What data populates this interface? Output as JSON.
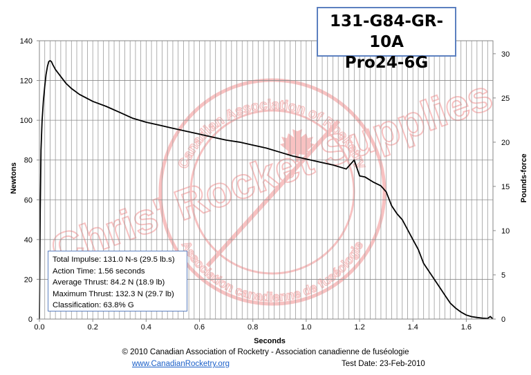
{
  "title_box": {
    "line1": "131-G84-GR-10A",
    "line2": "Pro24-6G"
  },
  "watermark": {
    "arc_top": "Canadian Association of Rocketry",
    "arc_bottom": "Association canadienne de fuséologie",
    "overlay": "Chris' Rocket Supplies",
    "color": "#f07878"
  },
  "stats": {
    "total_impulse": "Total Impulse: 131.0 N-s (29.5 lb.s)",
    "action_time": "Action Time: 1.56 seconds",
    "average_thrust": "Average Thrust: 84.2 N (18.9 lb)",
    "maximum_thrust": "Maximum Thrust: 132.3 N (29.7 lb)",
    "classification": "Classification: 63.8% G"
  },
  "footer": {
    "copyright": "© 2010 Canadian Association of Rocketry - Association canadienne de fuséologie",
    "link": "www.CanadianRocketry.org",
    "test_date": "Test  Date: 23-Feb-2010"
  },
  "chart_data": {
    "type": "line",
    "xlabel": "Seconds",
    "ylabel": "Newtons",
    "y2label": "Pounds-force",
    "xlim": [
      0,
      1.7
    ],
    "ylim": [
      0,
      140
    ],
    "y2lim": [
      0,
      31.47
    ],
    "x_ticks": [
      "0.0",
      "0.2",
      "0.4",
      "0.6",
      "0.8",
      "1.0",
      "1.2",
      "1.4",
      "1.6"
    ],
    "y_ticks": [
      "0",
      "20",
      "40",
      "60",
      "80",
      "100",
      "120",
      "140"
    ],
    "y2_ticks": [
      "0",
      "5",
      "10",
      "15",
      "20",
      "25",
      "30"
    ],
    "grid": true,
    "line_color": "#000000",
    "series": [
      {
        "x": [
          0,
          0.003,
          0.006,
          0.01,
          0.015,
          0.02,
          0.025,
          0.03,
          0.035,
          0.04,
          0.045,
          0.05,
          0.06,
          0.08,
          0.1,
          0.12,
          0.15,
          0.2,
          0.25,
          0.3,
          0.35,
          0.4,
          0.45,
          0.5,
          0.55,
          0.6,
          0.65,
          0.7,
          0.75,
          0.8,
          0.85,
          0.9,
          0.95,
          1.0,
          1.05,
          1.1,
          1.15,
          1.17,
          1.18,
          1.2,
          1.22,
          1.25,
          1.28,
          1.3,
          1.32,
          1.34,
          1.36,
          1.38,
          1.4,
          1.42,
          1.44,
          1.46,
          1.48,
          1.5,
          1.52,
          1.54,
          1.56,
          1.58,
          1.6,
          1.62,
          1.64,
          1.66,
          1.68,
          1.69,
          1.7
        ],
        "y": [
          0,
          55,
          85,
          100,
          110,
          117,
          123,
          127,
          129.5,
          130,
          129.5,
          128,
          125.5,
          122,
          118.5,
          116,
          113,
          109.5,
          107,
          104,
          101,
          99,
          97.5,
          96,
          94.5,
          93,
          91.5,
          90,
          89,
          87.5,
          86,
          84,
          82,
          80.5,
          79,
          77.5,
          75.5,
          78.5,
          80,
          72,
          71.5,
          69,
          67,
          64,
          57,
          53,
          50,
          45,
          40,
          35,
          28,
          24,
          20,
          16,
          12,
          8,
          5.5,
          3.5,
          2,
          1.2,
          0.8,
          0.5,
          0.3,
          1.3,
          0
        ]
      }
    ]
  }
}
